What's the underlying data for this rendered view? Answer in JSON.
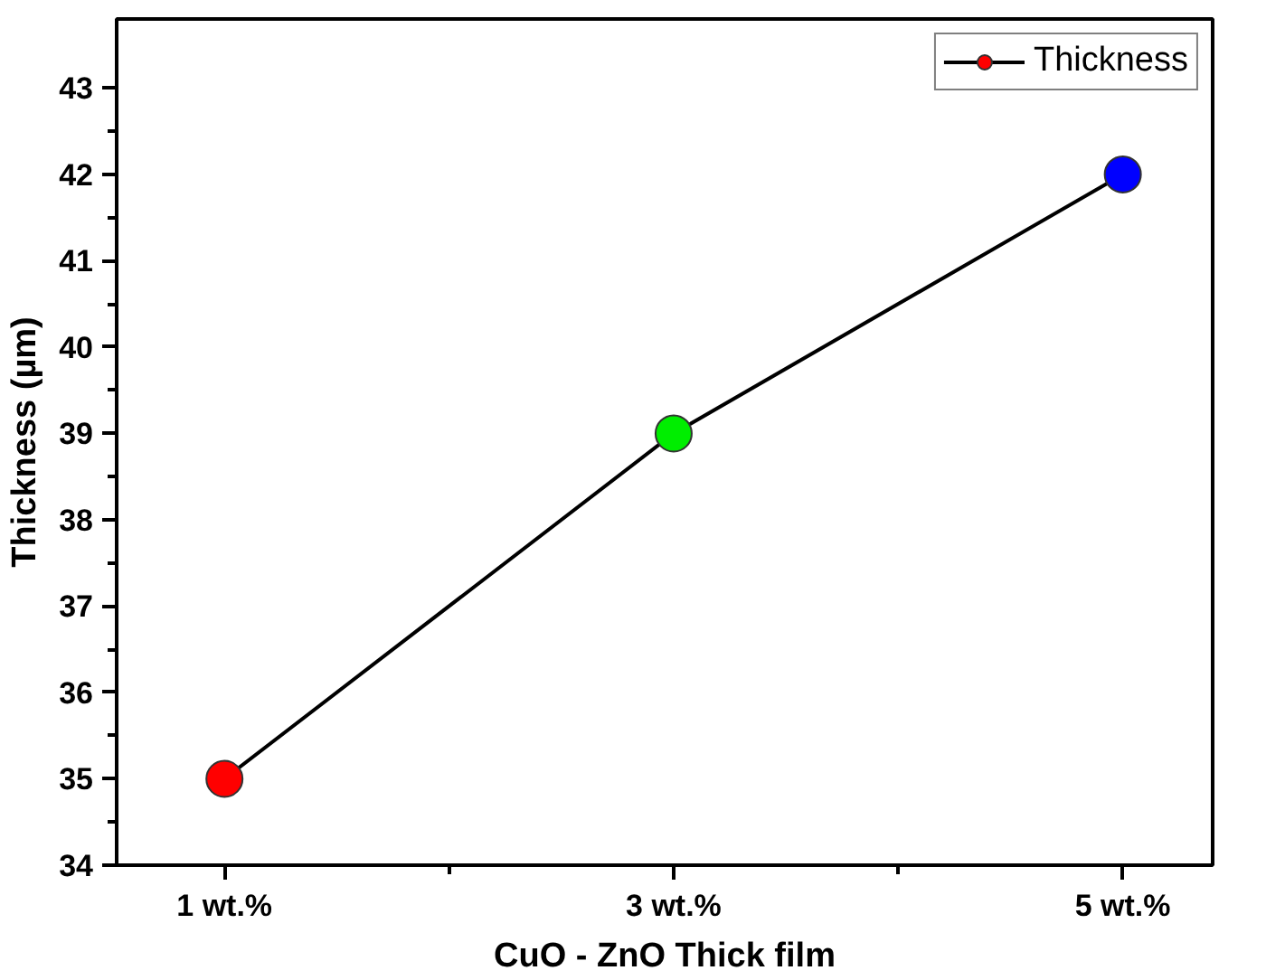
{
  "chart_data": {
    "type": "line",
    "xlabel": "CuO - ZnO Thick film",
    "ylabel": "Thickness (µm)",
    "categories": [
      "1 wt.%",
      "3 wt.%",
      "5 wt.%"
    ],
    "series": [
      {
        "name": "Thickness",
        "color": "#000000",
        "colors": [
          "#ff0000",
          "#00ee00",
          "#0000ff"
        ],
        "values": [
          35,
          39,
          42
        ]
      }
    ],
    "ylim": [
      34,
      43.8
    ],
    "yticks": [
      34,
      35,
      36,
      37,
      38,
      39,
      40,
      41,
      42,
      43
    ],
    "marker": "circle",
    "line_style": "solid",
    "legend": "top right",
    "grid": false
  }
}
